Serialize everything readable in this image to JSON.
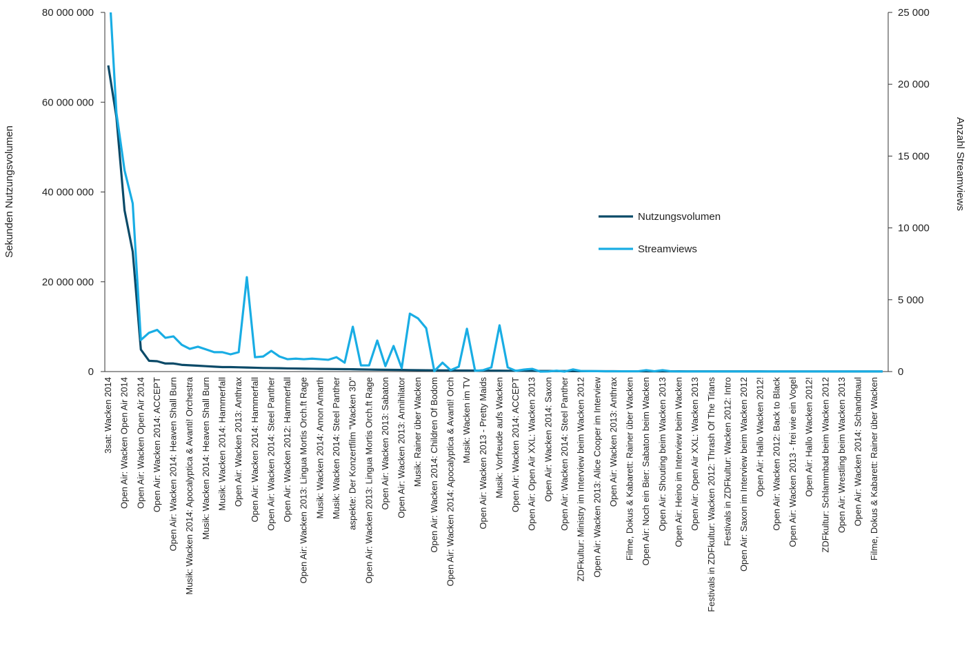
{
  "chart_data": {
    "type": "line",
    "y_label": "Sekunden Nutzungsvolumen",
    "y2_label": "Anzahl Streamviews",
    "categories": [
      "3sat: Wacken 2014",
      null,
      "Open Air: Wacken Open Air 2014",
      null,
      "Open Air: Wacken Open Air 2014",
      null,
      "Open Air: Wacken 2014: ACCEPT",
      null,
      "Open Air: Wacken 2014: Heaven Shall Burn",
      null,
      "Musik: Wacken 2014: Apocalyptica & Avanti! Orchestra",
      null,
      "Musik: Wacken 2014: Heaven Shall Burn",
      null,
      "Musik: Wacken 2014: Hammerfall",
      null,
      "Open Air: Wacken 2013: Anthrax",
      null,
      "Open Air: Wacken 2014: Hammerfall",
      null,
      "Open Air: Wacken 2014: Steel Panther",
      null,
      "Open Air: Wacken 2012: Hammerfall",
      null,
      "Open Air: Wacken 2013: Lingua Mortis Orch.ft Rage",
      null,
      "Musik: Wacken 2014: Amon Amarth",
      null,
      "Musik: Wacken 2014: Steel Panther",
      null,
      "aspekte: Der Konzertfilm \"Wacken 3D\"",
      null,
      "Open Air: Wacken 2013: Lingua Mortis Orch.ft Rage",
      null,
      "Open Air: Wacken 2013: Sabaton",
      null,
      "Open Air: Wacken 2013: Annihilator",
      null,
      "Musik: Rainer über Wacken",
      null,
      "Open Air: Wacken 2014: Children Of Bodom",
      null,
      "Open Air: Wacken 2014: Apocalyptica & Avanti! Orch",
      null,
      "Musik: Wacken im TV",
      null,
      "Open Air: Wacken 2013 - Pretty Maids",
      null,
      "Musik: Vorfreude aufs Wacken",
      null,
      "Open Air: Wacken 2014: ACCEPT",
      null,
      "Open Air: Open Air XXL: Wacken 2013",
      null,
      "Open Air: Wacken 2014: Saxon",
      null,
      "Open Air: Wacken 2014: Steel Panther",
      null,
      "ZDFkultur: Ministry im Interview beim Wacken 2012",
      null,
      "Open Air: Wacken 2013: Alice Cooper im Interview",
      null,
      "Open Air: Wacken 2013: Anthrax",
      null,
      "Filme, Dokus & Kabarett: Rainer über Wacken",
      null,
      "Open Air: Noch ein Bier: Sabaton beim Wacken",
      null,
      "Open Air: Shouting beim Wacken 2013",
      null,
      "Open Air: Heino im Interview beim Wacken",
      null,
      "Open Air: Open Air XXL: Wacken 2013",
      null,
      "Festivals in ZDFkultur: Wacken 2012: Thrash Of The Titans",
      null,
      "Festivals in ZDFkultur: Wacken 2012: Intro",
      null,
      "Open Air: Saxon im Interview beim Wacken 2012",
      null,
      "Open Air: Hallo Wacken 2012!",
      null,
      "Open Air: Wacken 2012: Back to Black",
      null,
      "Open Air: Wacken 2013 - frei wie ein Vogel",
      null,
      "Open Air: Hallo Wacken 2012!",
      null,
      "ZDFkultur: Schlammbad beim Wacken 2012",
      null,
      "Open Air: Wrestling beim Wacken 2013",
      null,
      "Open Air: Wacken 2014: Schandmaul",
      null,
      "Filme, Dokus & Kabarett: Rainer über Wacken",
      null
    ],
    "series": [
      {
        "name": "Nutzungsvolumen",
        "color": "#0b4a68",
        "values": [
          68200000,
          56700000,
          35900000,
          26700000,
          4900000,
          2400000,
          2300000,
          1800000,
          1800000,
          1500000,
          1400000,
          1300000,
          1200000,
          1100000,
          1000000,
          1000000,
          950000,
          900000,
          850000,
          800000,
          780000,
          750000,
          700000,
          680000,
          650000,
          620000,
          600000,
          580000,
          560000,
          540000,
          520000,
          480000,
          450000,
          420000,
          400000,
          380000,
          360000,
          340000,
          320000,
          300000,
          280000,
          260000,
          250000,
          240000,
          230000,
          220000,
          210000,
          200000,
          190000,
          180000,
          170000,
          160000,
          150000,
          140000,
          130000,
          120000,
          110000,
          100000,
          95000,
          90000,
          85000,
          80000,
          75000,
          70000,
          68000,
          65000,
          62000,
          60000,
          58000,
          55000,
          52000,
          50000,
          48000,
          46000,
          44000,
          42000,
          40000,
          38000,
          36000,
          35000,
          34000,
          33000,
          32000,
          31000,
          30000,
          29000,
          28000,
          27000,
          26000,
          25000,
          24000,
          23000,
          22000,
          21000,
          20000,
          19000
        ]
      },
      {
        "name": "Streamviews",
        "color": "#19ade4",
        "axis": "y2",
        "values": [
          28000,
          18000,
          14000,
          11700,
          2200,
          2700,
          2900,
          2350,
          2450,
          1870,
          1580,
          1730,
          1540,
          1350,
          1350,
          1200,
          1350,
          6570,
          1000,
          1050,
          1440,
          1050,
          860,
          900,
          860,
          900,
          860,
          820,
          1000,
          620,
          3120,
          430,
          430,
          2160,
          380,
          1780,
          240,
          4030,
          3700,
          3020,
          30,
          620,
          100,
          340,
          2980,
          50,
          100,
          290,
          3220,
          290,
          50,
          140,
          190,
          0,
          10,
          60,
          0,
          150,
          40,
          30,
          30,
          20,
          20,
          20,
          20,
          20,
          100,
          20,
          100,
          20,
          10,
          10,
          10,
          10,
          10,
          10,
          10,
          10,
          10,
          10,
          10,
          10,
          10,
          10,
          10,
          10,
          10,
          10,
          10,
          10,
          10,
          10,
          10,
          10,
          10,
          10
        ]
      }
    ],
    "ylim": [
      0,
      80000000
    ],
    "yticks": [
      0,
      {
        "value": 20000000,
        "label": "20 000 000"
      },
      {
        "value": 40000000,
        "label": "40 000 000"
      },
      {
        "value": 60000000,
        "label": "60 000 000"
      },
      {
        "value": 80000000,
        "label": "80 000 000"
      }
    ],
    "y2lim": [
      0,
      25000
    ],
    "y2ticks": [
      0,
      {
        "value": 5000,
        "label": "5 000"
      },
      {
        "value": 10000,
        "label": "10 000"
      },
      {
        "value": 15000,
        "label": "15 000"
      },
      {
        "value": 20000,
        "label": "20 000"
      },
      {
        "value": 25000,
        "label": "25 000"
      }
    ],
    "grid": false
  }
}
